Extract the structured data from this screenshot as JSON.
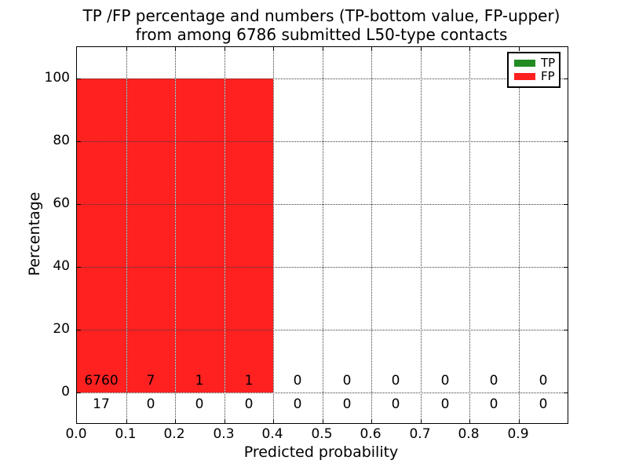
{
  "figure": {
    "title_line1": "TP /FP percentage and numbers (TP-bottom value, FP-upper)",
    "title_line2": "from among 6786 submitted L50-type contacts"
  },
  "chart_data": {
    "type": "bar",
    "stacked": true,
    "title": "TP /FP percentage and numbers (TP-bottom value, FP-upper)\nfrom among 6786 submitted L50-type contacts",
    "xlabel": "Predicted probability",
    "ylabel": "Percentage",
    "xlim": [
      0.0,
      1.0
    ],
    "ylim": [
      -10,
      110
    ],
    "grid": "dotted both axes",
    "legend_position": "upper right",
    "total_contacts": 6786,
    "bin_edges": [
      0.0,
      0.1,
      0.2,
      0.3,
      0.4,
      0.5,
      0.6,
      0.7,
      0.8,
      0.9,
      1.0
    ],
    "x_tick_labels": [
      "0.0",
      "0.1",
      "0.2",
      "0.3",
      "0.4",
      "0.5",
      "0.6",
      "0.7",
      "0.8",
      "0.9"
    ],
    "y_tick_values": [
      0,
      20,
      40,
      60,
      80,
      100
    ],
    "series": [
      {
        "name": "TP",
        "color": "#228b22",
        "counts": [
          17,
          0,
          0,
          0,
          0,
          0,
          0,
          0,
          0,
          0
        ],
        "percentages": [
          0.25,
          0,
          0,
          0,
          0,
          0,
          0,
          0,
          0,
          0
        ]
      },
      {
        "name": "FP",
        "color": "#ff2020",
        "counts": [
          6760,
          7,
          1,
          1,
          0,
          0,
          0,
          0,
          0,
          0
        ],
        "percentages": [
          99.75,
          100,
          100,
          100,
          0,
          0,
          0,
          0,
          0,
          0
        ]
      }
    ]
  },
  "colors": {
    "spine": "#000000",
    "grid": "#3c3c3c",
    "background": "#ffffff",
    "text": "#000000"
  }
}
